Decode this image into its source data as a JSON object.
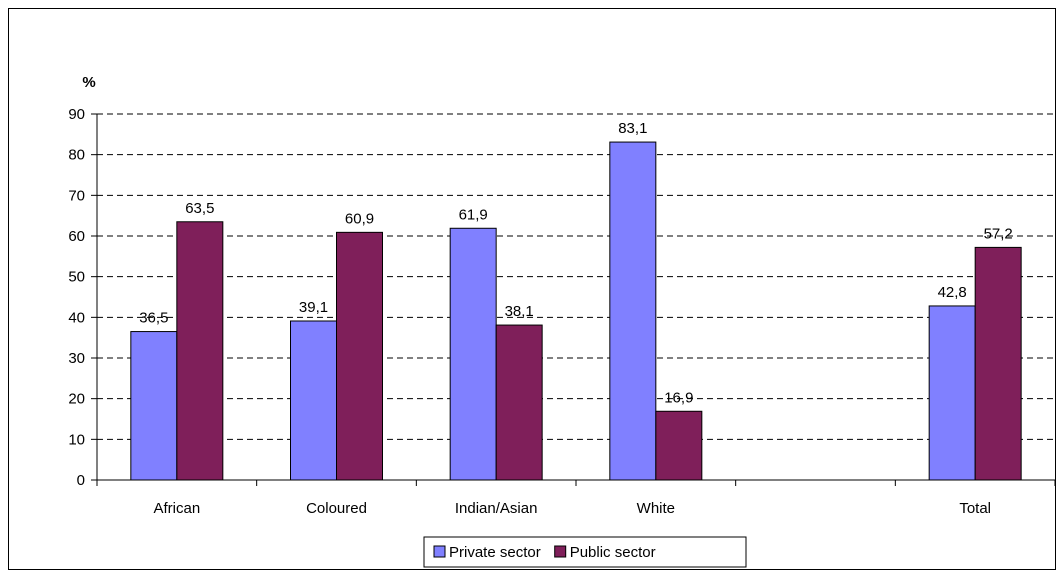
{
  "chart_data": {
    "type": "bar",
    "ylabel": "%",
    "ylim": [
      0,
      90
    ],
    "yticks": [
      "0",
      "10",
      "20",
      "30",
      "40",
      "50",
      "60",
      "70",
      "80",
      "90"
    ],
    "categories": [
      "African",
      "Coloured",
      "Indian/Asian",
      "White",
      "",
      "Total"
    ],
    "series": [
      {
        "name": "Private sector",
        "color": "#8080ff",
        "values": [
          36.5,
          39.1,
          61.9,
          83.1,
          null,
          42.8
        ],
        "labels": [
          "36,5",
          "39,1",
          "61,9",
          "83,1",
          "",
          "42,8"
        ]
      },
      {
        "name": "Public sector",
        "color": "#7f1f5a",
        "values": [
          63.5,
          60.9,
          38.1,
          16.9,
          null,
          57.2
        ],
        "labels": [
          "63,5",
          "60,9",
          "38,1",
          "16,9",
          "",
          "57,2"
        ]
      }
    ],
    "grid": "dashed horizontal",
    "legend_position": "bottom"
  }
}
